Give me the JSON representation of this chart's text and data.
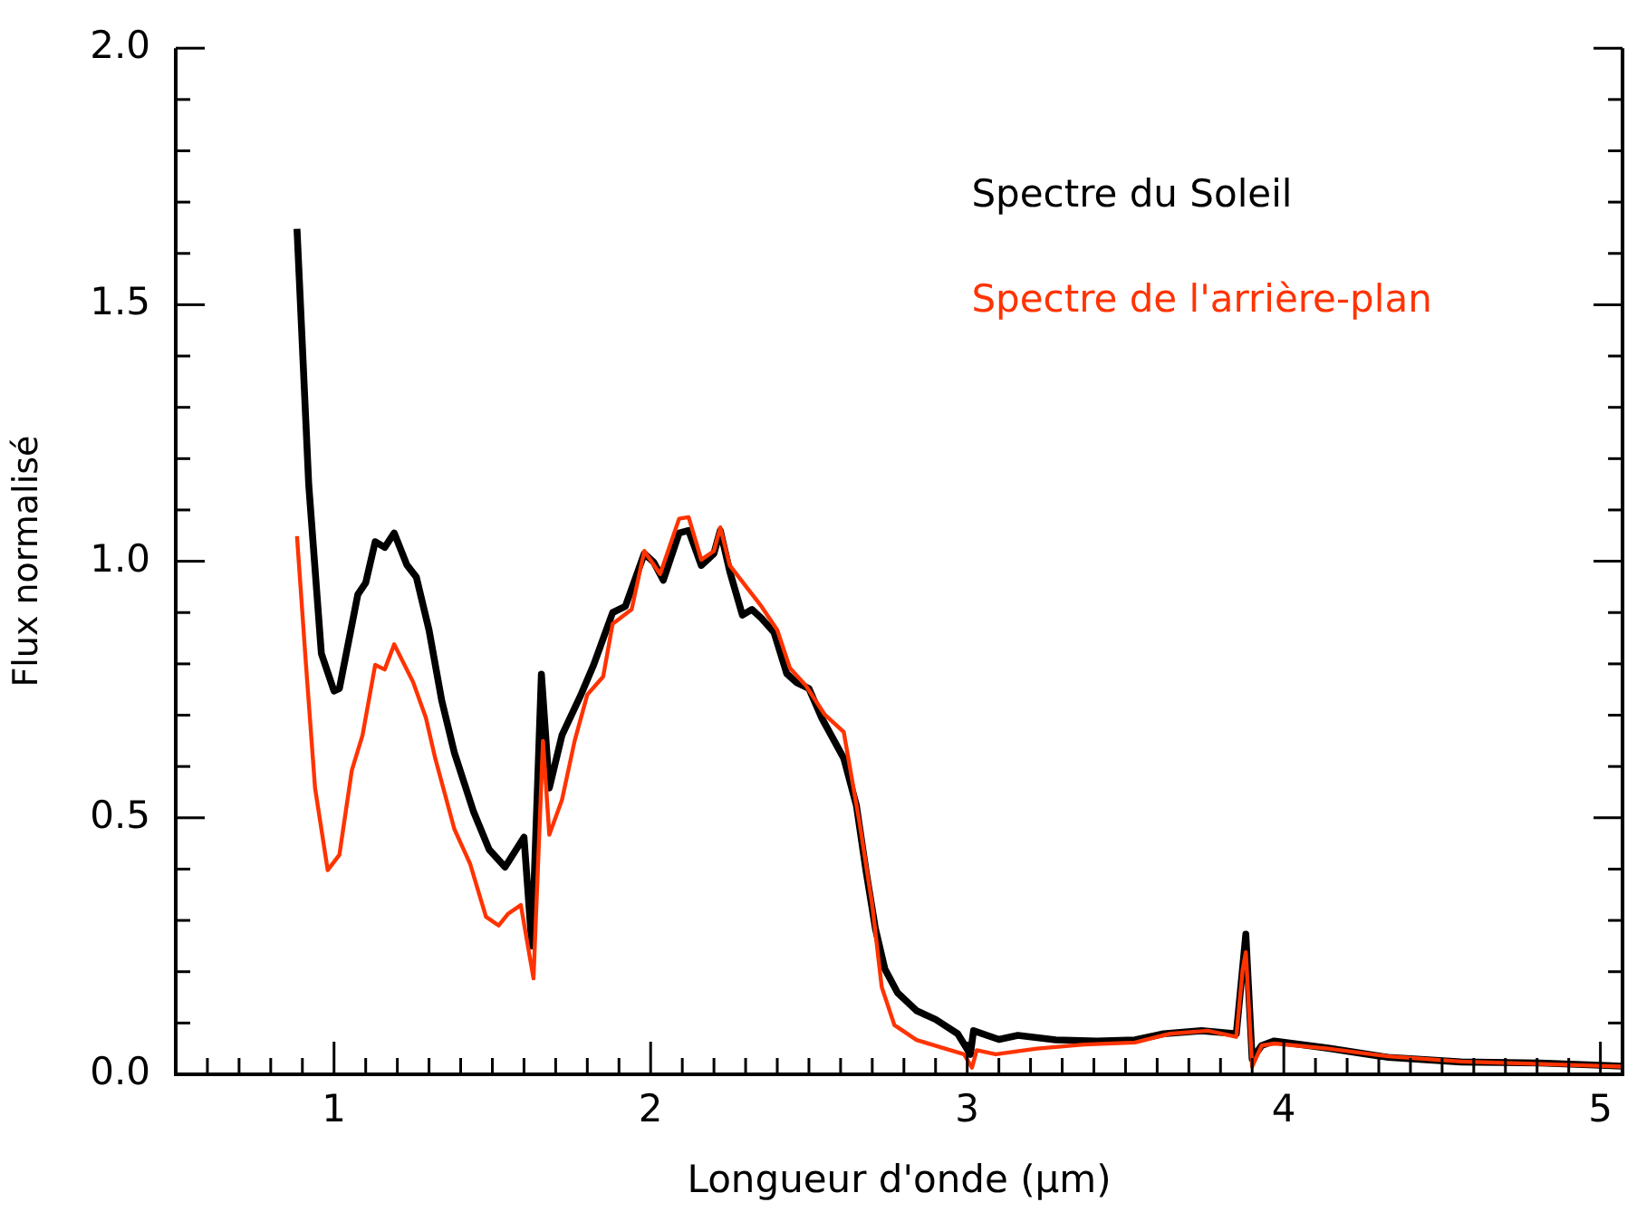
{
  "chart_data": {
    "type": "line",
    "xlabel": "Longueur d'onde (μm)",
    "ylabel": "Flux normalisé",
    "xlim": [
      0.5,
      5.07
    ],
    "ylim": [
      0,
      2
    ],
    "xticks": [
      1,
      2,
      3,
      4,
      5
    ],
    "yticks": [
      {
        "value": 0,
        "label": "0.0"
      },
      {
        "value": 0.5,
        "label": "0.5"
      },
      {
        "value": 1,
        "label": "1.0"
      },
      {
        "value": 1.5,
        "label": "1.5"
      },
      {
        "value": 2,
        "label": "2.0"
      }
    ],
    "grid": false,
    "legend": "top right",
    "marker": "none",
    "line_style": "solid",
    "series": [
      {
        "name": "Spectre du Soleil",
        "color": "#000000",
        "x": [
          0.883,
          0.92,
          0.96,
          1.0,
          1.017,
          1.075,
          1.1,
          1.13,
          1.16,
          1.19,
          1.23,
          1.26,
          1.3,
          1.34,
          1.38,
          1.44,
          1.49,
          1.54,
          1.6,
          1.625,
          1.655,
          1.68,
          1.72,
          1.78,
          1.82,
          1.88,
          1.92,
          1.98,
          2.01,
          2.04,
          2.09,
          2.12,
          2.16,
          2.2,
          2.22,
          2.25,
          2.29,
          2.32,
          2.35,
          2.39,
          2.43,
          2.46,
          2.5,
          2.54,
          2.58,
          2.61,
          2.65,
          2.68,
          2.71,
          2.74,
          2.78,
          2.84,
          2.9,
          2.97,
          3.01,
          3.02,
          3.1,
          3.16,
          3.28,
          3.41,
          3.53,
          3.62,
          3.74,
          3.85,
          3.88,
          3.9,
          3.93,
          3.97,
          4.14,
          4.33,
          4.56,
          4.81,
          5.07
        ],
        "values": [
          1.648,
          1.15,
          0.82,
          0.747,
          0.752,
          0.935,
          0.958,
          1.038,
          1.027,
          1.055,
          0.993,
          0.969,
          0.866,
          0.729,
          0.627,
          0.513,
          0.438,
          0.404,
          0.462,
          0.25,
          0.78,
          0.558,
          0.661,
          0.74,
          0.798,
          0.9,
          0.912,
          1.015,
          0.998,
          0.963,
          1.055,
          1.06,
          0.992,
          1.015,
          1.06,
          0.98,
          0.895,
          0.906,
          0.889,
          0.861,
          0.781,
          0.764,
          0.752,
          0.695,
          0.65,
          0.616,
          0.524,
          0.398,
          0.284,
          0.205,
          0.159,
          0.124,
          0.107,
          0.079,
          0.039,
          0.085,
          0.068,
          0.076,
          0.067,
          0.065,
          0.067,
          0.079,
          0.085,
          0.079,
          0.273,
          0.03,
          0.056,
          0.065,
          0.051,
          0.033,
          0.024,
          0.022,
          0.016
        ]
      },
      {
        "name": "Spectre de l'arrière-plan",
        "color": "#ff3300",
        "x": [
          0.883,
          0.91,
          0.94,
          0.98,
          1.017,
          1.056,
          1.09,
          1.13,
          1.16,
          1.19,
          1.25,
          1.29,
          1.32,
          1.38,
          1.43,
          1.48,
          1.52,
          1.55,
          1.59,
          1.63,
          1.66,
          1.68,
          1.72,
          1.76,
          1.8,
          1.85,
          1.88,
          1.94,
          1.98,
          2.03,
          2.09,
          2.12,
          2.16,
          2.2,
          2.22,
          2.25,
          2.3,
          2.35,
          2.4,
          2.44,
          2.49,
          2.55,
          2.61,
          2.66,
          2.7,
          2.73,
          2.77,
          2.84,
          2.93,
          2.99,
          3.015,
          3.03,
          3.09,
          3.22,
          3.37,
          3.53,
          3.64,
          3.76,
          3.85,
          3.87,
          3.88,
          3.9,
          3.93,
          3.97,
          4.14,
          4.33,
          4.56,
          4.81,
          5.07
        ],
        "values": [
          1.049,
          0.81,
          0.558,
          0.398,
          0.428,
          0.592,
          0.661,
          0.798,
          0.789,
          0.838,
          0.764,
          0.695,
          0.615,
          0.478,
          0.41,
          0.307,
          0.29,
          0.313,
          0.33,
          0.187,
          0.65,
          0.467,
          0.535,
          0.65,
          0.74,
          0.775,
          0.878,
          0.906,
          1.02,
          0.975,
          1.083,
          1.086,
          1.003,
          1.02,
          1.066,
          0.992,
          0.952,
          0.912,
          0.866,
          0.792,
          0.758,
          0.701,
          0.667,
          0.49,
          0.33,
          0.17,
          0.096,
          0.067,
          0.05,
          0.039,
          0.013,
          0.047,
          0.039,
          0.05,
          0.058,
          0.062,
          0.079,
          0.085,
          0.073,
          0.204,
          0.238,
          0.015,
          0.056,
          0.06,
          0.05,
          0.035,
          0.025,
          0.02,
          0.015
        ]
      }
    ]
  }
}
